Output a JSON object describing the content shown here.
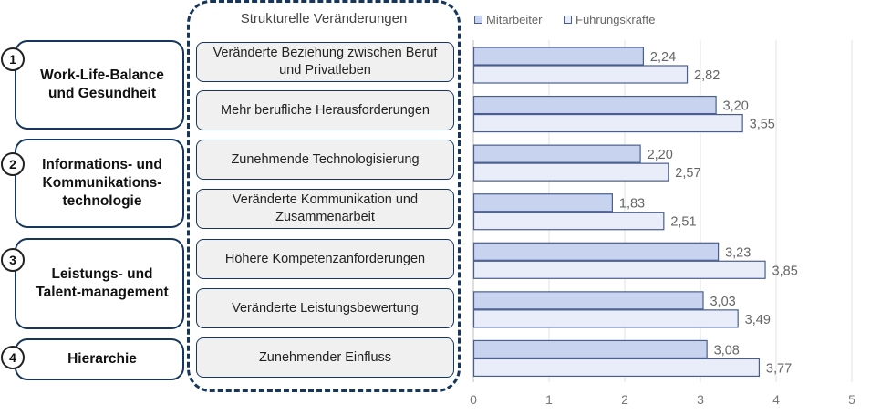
{
  "middle_header": "Strukturelle Veränderungen",
  "categories": [
    {
      "number": "1",
      "label": "Work-Life-Balance und Gesundheit"
    },
    {
      "number": "2",
      "label": "Informations- und Kommunikations-technologie"
    },
    {
      "number": "3",
      "label": "Leistungs- und Talent-management"
    },
    {
      "number": "4",
      "label": "Hierarchie"
    }
  ],
  "changes": [
    "Veränderte Beziehung zwischen Beruf und Privatleben",
    "Mehr berufliche Herausforderungen",
    "Zunehmende Technologisierung",
    "Veränderte Kommunikation und Zusammenarbeit",
    "Höhere Kompetenzanforderungen",
    "Veränderte Leistungsbewertung",
    "Zunehmender Einfluss"
  ],
  "colors": {
    "navy": "#17365d",
    "mitarbeiter_fill": "#c7d3ef",
    "fuehrung_fill": "#e8edf9",
    "bar_border": "#4a5f8f",
    "grid": "#e2e2e2"
  },
  "chart_data": {
    "type": "bar",
    "orientation": "horizontal",
    "categories": [
      "Veränderte Beziehung zwischen Beruf und Privatleben",
      "Mehr berufliche Herausforderungen",
      "Zunehmende Technologisierung",
      "Veränderte Kommunikation und Zusammenarbeit",
      "Höhere Kompetenzanforderungen",
      "Veränderte Leistungsbewertung",
      "Zunehmender Einfluss"
    ],
    "series": [
      {
        "name": "Mitarbeiter",
        "values": [
          2.24,
          3.2,
          2.2,
          1.83,
          3.23,
          3.03,
          3.08
        ],
        "labels": [
          "2,24",
          "3,20",
          "2,20",
          "1,83",
          "3,23",
          "3,03",
          "3,08"
        ]
      },
      {
        "name": "Führungskräfte",
        "values": [
          2.82,
          3.55,
          2.57,
          2.51,
          3.85,
          3.49,
          3.77
        ],
        "labels": [
          "2,82",
          "3,55",
          "2,57",
          "2,51",
          "3,85",
          "3,49",
          "3,77"
        ]
      }
    ],
    "xlim": [
      0,
      5
    ],
    "ticks": [
      "0",
      "1",
      "2",
      "3",
      "4",
      "5"
    ],
    "grid": true,
    "legend": "top-left"
  }
}
